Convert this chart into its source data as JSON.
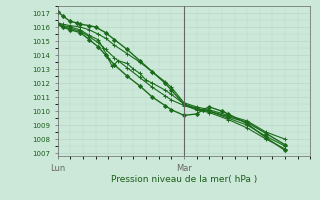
{
  "title": "Pression niveau de la mer( hPa )",
  "bg_color": "#cce8d8",
  "grid_color": "#b8d8c8",
  "line_color": "#1a6b1a",
  "marker_color": "#1a6b1a",
  "axis_color": "#666666",
  "text_color": "#1a5c1a",
  "ylim": [
    1006.8,
    1017.5
  ],
  "yticks": [
    1007,
    1008,
    1009,
    1010,
    1011,
    1012,
    1013,
    1014,
    1015,
    1016,
    1017
  ],
  "xlim": [
    0.0,
    2.0
  ],
  "xtick_labels": [
    "Lun",
    "Mar"
  ],
  "xtick_pos": [
    0.0,
    1.0
  ],
  "vline_x": 1.0,
  "series": [
    {
      "x": [
        0.0,
        0.04,
        0.1,
        0.15,
        0.18,
        0.25,
        0.3,
        0.38,
        0.45,
        0.55,
        0.65,
        0.75,
        0.85,
        0.9,
        1.0,
        1.1,
        1.2,
        1.35,
        1.5,
        1.65,
        1.8
      ],
      "y": [
        1017.1,
        1016.8,
        1016.4,
        1016.3,
        1016.2,
        1016.1,
        1016.0,
        1015.6,
        1015.1,
        1014.4,
        1013.6,
        1012.8,
        1012.0,
        1011.5,
        1010.5,
        1010.2,
        1010.0,
        1009.6,
        1009.2,
        1008.4,
        1007.6
      ],
      "marker": "D",
      "ms": 2.0,
      "lw": 1.0
    },
    {
      "x": [
        0.0,
        0.04,
        0.1,
        0.18,
        0.25,
        0.32,
        0.38,
        0.45,
        0.55,
        0.65,
        0.75,
        0.85,
        0.9,
        1.0,
        1.1,
        1.2,
        1.35,
        1.5,
        1.65,
        1.8
      ],
      "y": [
        1016.3,
        1016.2,
        1016.1,
        1016.0,
        1015.8,
        1015.5,
        1015.2,
        1014.7,
        1014.1,
        1013.5,
        1012.8,
        1012.1,
        1011.7,
        1010.6,
        1010.3,
        1010.1,
        1009.7,
        1009.3,
        1008.5,
        1008.0
      ],
      "marker": "+",
      "ms": 3.5,
      "lw": 0.8
    },
    {
      "x": [
        0.0,
        0.04,
        0.1,
        0.18,
        0.25,
        0.32,
        0.36,
        0.4,
        0.43,
        0.48,
        0.55,
        0.6,
        0.65,
        0.7,
        0.75,
        0.85,
        0.9,
        1.0,
        1.1,
        1.2,
        1.35,
        1.5,
        1.65,
        1.8
      ],
      "y": [
        1016.2,
        1016.1,
        1016.0,
        1015.8,
        1015.4,
        1015.1,
        1014.5,
        1013.8,
        1013.2,
        1013.6,
        1013.4,
        1013.0,
        1012.7,
        1012.2,
        1012.0,
        1011.5,
        1011.2,
        1010.5,
        1010.1,
        1010.0,
        1009.5,
        1009.0,
        1008.2,
        1007.5
      ],
      "marker": "+",
      "ms": 3.5,
      "lw": 0.8
    },
    {
      "x": [
        0.0,
        0.04,
        0.1,
        0.18,
        0.25,
        0.32,
        0.38,
        0.45,
        0.55,
        0.65,
        0.75,
        0.85,
        0.9,
        1.0,
        1.1,
        1.2,
        1.35,
        1.5,
        1.65,
        1.8
      ],
      "y": [
        1016.2,
        1016.0,
        1015.9,
        1015.7,
        1015.3,
        1014.9,
        1014.4,
        1013.8,
        1013.1,
        1012.4,
        1011.7,
        1011.1,
        1010.8,
        1010.4,
        1010.1,
        1009.9,
        1009.4,
        1008.8,
        1008.0,
        1007.3
      ],
      "marker": "+",
      "ms": 3.5,
      "lw": 0.8
    },
    {
      "x": [
        0.0,
        0.04,
        0.1,
        0.18,
        0.25,
        0.32,
        0.38,
        0.45,
        0.55,
        0.65,
        0.75,
        0.85,
        0.9,
        1.0,
        1.1,
        1.15,
        1.2,
        1.3,
        1.35,
        1.5,
        1.65,
        1.8
      ],
      "y": [
        1016.2,
        1016.0,
        1015.8,
        1015.6,
        1015.1,
        1014.6,
        1014.0,
        1013.3,
        1012.5,
        1011.8,
        1011.0,
        1010.4,
        1010.1,
        1009.7,
        1009.8,
        1010.1,
        1010.3,
        1010.0,
        1009.8,
        1009.1,
        1008.1,
        1007.2
      ],
      "marker": "D",
      "ms": 2.0,
      "lw": 1.0
    }
  ]
}
